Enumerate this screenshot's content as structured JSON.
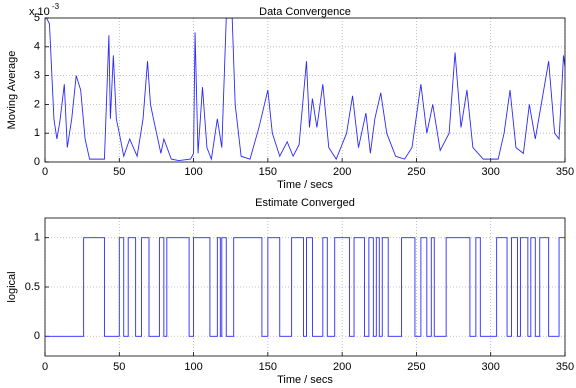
{
  "chart_data": [
    {
      "type": "line",
      "title": "Data Convergence",
      "x_label": "Time / secs",
      "y_label": "Moving Average",
      "y_scale_label": "x 10",
      "y_scale_exponent": "-3",
      "color": "#2a2aff",
      "grid": true,
      "xlim": [
        0,
        350
      ],
      "xticks": [
        0,
        50,
        100,
        150,
        200,
        250,
        300,
        350
      ],
      "ylim": [
        0,
        5
      ],
      "yticks": [
        0,
        1,
        2,
        3,
        4,
        5
      ],
      "series": [
        {
          "name": "Moving Average",
          "color": "#2a2aff",
          "x": [
            1,
            3,
            6,
            8,
            10,
            13,
            15,
            18,
            21,
            24,
            27,
            30,
            35,
            40,
            43,
            44,
            46,
            48,
            50,
            53,
            57,
            62,
            66,
            69,
            71,
            73,
            78,
            80,
            85,
            90,
            98,
            100,
            101,
            103,
            106,
            109,
            112,
            116,
            119,
            122,
            124,
            126,
            128,
            132,
            138,
            144,
            150,
            153,
            158,
            163,
            167,
            171,
            176,
            178,
            180,
            183,
            187,
            191,
            196,
            203,
            207,
            211,
            216,
            219,
            222,
            226,
            230,
            236,
            242,
            247,
            253,
            257,
            261,
            266,
            272,
            276,
            280,
            284,
            288,
            295,
            305,
            309,
            313,
            317,
            322,
            326,
            330,
            335,
            339,
            343,
            346,
            349,
            350
          ],
          "values": [
            5,
            4.8,
            1.5,
            0.8,
            1.4,
            2.7,
            0.5,
            1.5,
            3.0,
            2.5,
            0.8,
            0.1,
            0.1,
            0.1,
            4.4,
            1.5,
            3.7,
            1.5,
            1.0,
            0.2,
            0.8,
            0.2,
            1.5,
            3.5,
            2.0,
            1.5,
            0.3,
            0.8,
            0.1,
            0.05,
            0.1,
            0.3,
            4.5,
            0.3,
            2.6,
            0.5,
            0.1,
            1.5,
            0.5,
            5,
            5,
            5,
            2.0,
            0.2,
            0.1,
            1.2,
            2.5,
            1.0,
            0.2,
            0.7,
            0.2,
            0.6,
            3.5,
            1.2,
            2.2,
            1.2,
            2.7,
            0.5,
            0.1,
            1.0,
            2.3,
            0.5,
            1.7,
            0.3,
            1.5,
            2.4,
            1.0,
            0.2,
            0.1,
            0.5,
            2.7,
            1.0,
            2.0,
            0.4,
            1.0,
            3.8,
            1.2,
            2.5,
            0.5,
            0.1,
            0.1,
            1.0,
            2.5,
            0.5,
            0.3,
            2.0,
            0.8,
            2.3,
            3.5,
            1.0,
            0.8,
            3.7,
            3.3
          ]
        }
      ]
    },
    {
      "type": "step",
      "title": "Estimate Converged",
      "x_label": "Time / secs",
      "y_label": "logical",
      "color": "#2a2aff",
      "grid": true,
      "xlim": [
        0,
        350
      ],
      "xticks": [
        0,
        50,
        100,
        150,
        200,
        250,
        300,
        350
      ],
      "ylim": [
        -0.2,
        1.2
      ],
      "yticks": [
        0,
        0.5,
        1
      ],
      "series": [
        {
          "name": "logical",
          "color": "#2a2aff",
          "x": [
            0,
            26,
            40,
            50,
            53,
            56,
            61,
            65,
            70,
            77,
            80,
            82,
            97,
            100,
            111,
            116,
            118,
            119,
            122,
            127,
            146,
            150,
            158,
            166,
            174,
            176,
            180,
            187,
            190,
            195,
            205,
            208,
            215,
            218,
            221,
            223,
            225,
            227,
            231,
            240,
            249,
            253,
            257,
            260,
            262,
            270,
            286,
            290,
            293,
            304,
            311,
            314,
            318,
            320,
            325,
            327,
            330,
            333,
            339,
            346,
            350
          ],
          "values": [
            0,
            1,
            0,
            1,
            0,
            1,
            0,
            1,
            0,
            1,
            0,
            1,
            0,
            1,
            0,
            1,
            0,
            1,
            0,
            1,
            0,
            1,
            0,
            1,
            0,
            1,
            0,
            1,
            0,
            1,
            0,
            1,
            0,
            1,
            0,
            1,
            0,
            1,
            0,
            1,
            0,
            1,
            0,
            1,
            0,
            1,
            0,
            1,
            0,
            1,
            0,
            1,
            0,
            1,
            0,
            1,
            0,
            1,
            0,
            1,
            1
          ]
        }
      ]
    }
  ]
}
